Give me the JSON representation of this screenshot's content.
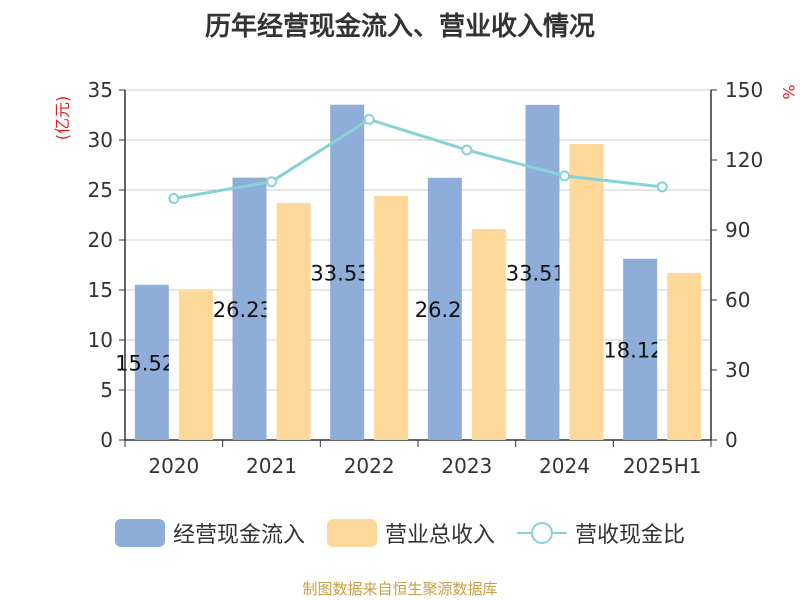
{
  "chart_data": {
    "type": "bar",
    "title": "历年经营现金流入、营业收入情况",
    "categories": [
      "2020",
      "2021",
      "2022",
      "2023",
      "2024",
      "2025H1"
    ],
    "ylabel_left": "(亿元)",
    "ylabel_right": "%",
    "ylim_left": [
      0,
      35
    ],
    "yticks_left": [
      0,
      5,
      10,
      15,
      20,
      25,
      30,
      35
    ],
    "ylim_right": [
      0,
      150
    ],
    "yticks_right": [
      0,
      30,
      60,
      90,
      120,
      150
    ],
    "series": [
      {
        "name": "经营现金流入",
        "type": "bar",
        "axis": "left",
        "color": "#8eadd9",
        "values": [
          15.522,
          26.237,
          33.531,
          26.22,
          33.514,
          18.124
        ],
        "data_labels": [
          "15.522",
          "26.237",
          "33.531",
          "26.22",
          "33.514",
          "18.124"
        ]
      },
      {
        "name": "营业总收入",
        "type": "bar",
        "axis": "left",
        "color": "#fdd899",
        "values": [
          15.0,
          23.7,
          24.4,
          21.1,
          29.6,
          16.7
        ]
      },
      {
        "name": "营收现金比",
        "type": "line",
        "axis": "right",
        "color": "#88d2d6",
        "values": [
          103.5,
          110.7,
          137.4,
          124.3,
          113.2,
          108.5
        ]
      }
    ],
    "grid": true,
    "legend": "bottom"
  },
  "source_note": "制图数据来自恒生聚源数据库"
}
